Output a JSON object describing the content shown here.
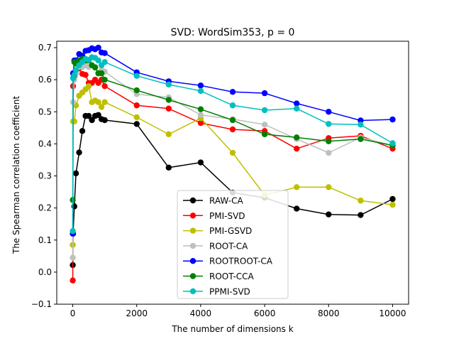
{
  "chart_data": {
    "type": "line",
    "title": "SVD: WordSim353, p = 0",
    "xlabel": "The number of dimensions k",
    "ylabel": "The Spearman correlation coefficient",
    "xlim": [
      -500,
      10500
    ],
    "ylim": [
      -0.1,
      0.72
    ],
    "xticks": [
      0,
      2000,
      4000,
      6000,
      8000,
      10000
    ],
    "xtick_labels": [
      "0",
      "2000",
      "4000",
      "6000",
      "8000",
      "10000"
    ],
    "yticks": [
      -0.1,
      0.0,
      0.1,
      0.2,
      0.3,
      0.4,
      0.5,
      0.6,
      0.7
    ],
    "ytick_labels": [
      "−0.1",
      "0.0",
      "0.1",
      "0.2",
      "0.3",
      "0.4",
      "0.5",
      "0.6",
      "0.7"
    ],
    "grid": false,
    "legend_position": "lower-center",
    "series": [
      {
        "name": "RAW-CA",
        "color": "#000000",
        "x": [
          1,
          10,
          50,
          100,
          200,
          300,
          400,
          500,
          600,
          700,
          800,
          900,
          1000,
          2000,
          3000,
          4000,
          5000,
          6000,
          7000,
          8000,
          9000,
          10000
        ],
        "y": [
          0.022,
          0.12,
          0.205,
          0.308,
          0.373,
          0.44,
          0.487,
          0.487,
          0.474,
          0.487,
          0.49,
          0.477,
          0.474,
          0.462,
          0.326,
          0.342,
          0.248,
          0.232,
          0.198,
          0.18,
          0.178,
          0.228
        ]
      },
      {
        "name": "PMI-SVD",
        "color": "#ff0000",
        "x": [
          1,
          10,
          50,
          100,
          200,
          300,
          400,
          500,
          600,
          700,
          800,
          900,
          1000,
          2000,
          3000,
          4000,
          5000,
          6000,
          7000,
          8000,
          9000,
          10000
        ],
        "y": [
          -0.026,
          0.58,
          0.61,
          0.62,
          0.635,
          0.618,
          0.615,
          0.59,
          0.59,
          0.6,
          0.59,
          0.6,
          0.58,
          0.52,
          0.51,
          0.465,
          0.445,
          0.44,
          0.385,
          0.418,
          0.425,
          0.385
        ]
      },
      {
        "name": "PMI-GSVD",
        "color": "#bfbf00",
        "x": [
          1,
          10,
          50,
          100,
          200,
          300,
          400,
          500,
          600,
          700,
          800,
          900,
          1000,
          2000,
          3000,
          4000,
          5000,
          6000,
          7000,
          8000,
          9000,
          10000
        ],
        "y": [
          0.085,
          0.47,
          0.47,
          0.52,
          0.55,
          0.56,
          0.57,
          0.58,
          0.53,
          0.535,
          0.53,
          0.515,
          0.53,
          0.483,
          0.43,
          0.48,
          0.372,
          0.24,
          0.265,
          0.265,
          0.223,
          0.21
        ]
      },
      {
        "name": "ROOT-CA",
        "color": "#bfbfbf",
        "x": [
          1,
          10,
          50,
          100,
          200,
          300,
          400,
          500,
          600,
          700,
          800,
          900,
          1000,
          2000,
          3000,
          4000,
          5000,
          6000,
          7000,
          8000,
          9000,
          10000
        ],
        "y": [
          0.045,
          0.53,
          0.6,
          0.62,
          0.64,
          0.64,
          0.645,
          0.64,
          0.645,
          0.64,
          0.62,
          0.63,
          0.625,
          0.555,
          0.545,
          0.49,
          0.477,
          0.46,
          0.415,
          0.372,
          0.42,
          0.395
        ]
      },
      {
        "name": "ROOTROOT-CA",
        "color": "#0000ff",
        "x": [
          1,
          10,
          50,
          100,
          200,
          300,
          400,
          500,
          600,
          700,
          800,
          900,
          1000,
          2000,
          3000,
          4000,
          5000,
          6000,
          7000,
          8000,
          9000,
          10000
        ],
        "y": [
          0.12,
          0.62,
          0.66,
          0.66,
          0.68,
          0.675,
          0.69,
          0.692,
          0.698,
          0.695,
          0.7,
          0.685,
          0.683,
          0.623,
          0.595,
          0.582,
          0.562,
          0.558,
          0.526,
          0.5,
          0.473,
          0.476
        ]
      },
      {
        "name": "ROOT-CCA",
        "color": "#008000",
        "x": [
          1,
          10,
          50,
          100,
          200,
          300,
          400,
          500,
          600,
          700,
          800,
          900,
          1000,
          2000,
          3000,
          4000,
          5000,
          6000,
          7000,
          8000,
          9000,
          10000
        ],
        "y": [
          0.225,
          0.605,
          0.655,
          0.65,
          0.66,
          0.665,
          0.66,
          0.66,
          0.645,
          0.638,
          0.62,
          0.62,
          0.6,
          0.567,
          0.537,
          0.508,
          0.474,
          0.43,
          0.42,
          0.408,
          0.415,
          0.395
        ]
      },
      {
        "name": "PPMI-SVD",
        "color": "#00bfbf",
        "x": [
          1,
          10,
          50,
          100,
          200,
          300,
          400,
          500,
          600,
          700,
          800,
          900,
          1000,
          2000,
          3000,
          4000,
          5000,
          6000,
          7000,
          8000,
          9000,
          10000
        ],
        "y": [
          0.128,
          0.605,
          0.615,
          0.63,
          0.645,
          0.655,
          0.665,
          0.662,
          0.67,
          0.668,
          0.66,
          0.645,
          0.655,
          0.612,
          0.585,
          0.565,
          0.52,
          0.505,
          0.51,
          0.462,
          0.46,
          0.402
        ]
      }
    ]
  }
}
